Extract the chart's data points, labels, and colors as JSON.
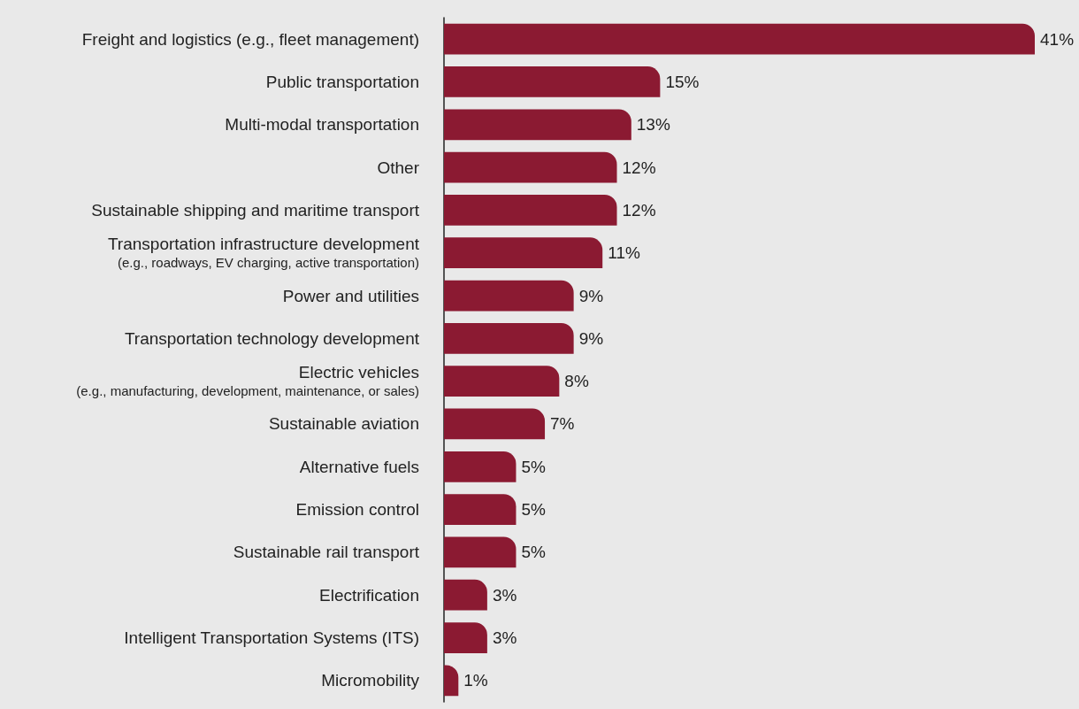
{
  "chart_data": {
    "type": "bar",
    "orientation": "horizontal",
    "color": "#8b1a32",
    "categories": [
      "Freight and logistics (e.g., fleet management)",
      "Public transportation",
      "Multi-modal transportation",
      "Other",
      "Sustainable shipping and maritime transport",
      "Transportation infrastructure development\n(e.g., roadways, EV charging, active transportation)",
      "Power and utilities",
      "Transportation technology development",
      "Electric vehicles\n(e.g., manufacturing, development, maintenance, or sales)",
      "Sustainable aviation",
      "Alternative fuels",
      "Emission control",
      "Sustainable rail transport",
      "Electrification",
      "Intelligent Transportation Systems (ITS)",
      "Micromobility"
    ],
    "values": [
      41,
      15,
      13,
      12,
      12,
      11,
      9,
      9,
      8,
      7,
      5,
      5,
      5,
      3,
      3,
      1
    ],
    "value_labels": [
      "41%",
      "15%",
      "13%",
      "12%",
      "12%",
      "11%",
      "9%",
      "9%",
      "8%",
      "7%",
      "5%",
      "5%",
      "5%",
      "3%",
      "3%",
      "1%"
    ],
    "grid": false
  }
}
